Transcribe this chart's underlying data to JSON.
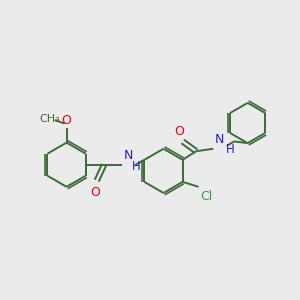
{
  "bg_color": "#ebebeb",
  "bond_color": "#3d6b38",
  "o_color": "#ee0000",
  "n_color": "#2020cc",
  "cl_color": "#3d9c3d",
  "line_width": 1.4,
  "font_size": 8.5,
  "figsize": [
    3.0,
    3.0
  ],
  "dpi": 100,
  "xlim": [
    0,
    12
  ],
  "ylim": [
    0,
    12
  ]
}
